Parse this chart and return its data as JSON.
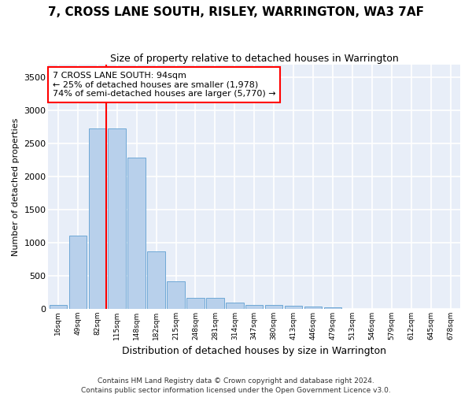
{
  "title1": "7, CROSS LANE SOUTH, RISLEY, WARRINGTON, WA3 7AF",
  "title2": "Size of property relative to detached houses in Warrington",
  "xlabel": "Distribution of detached houses by size in Warrington",
  "ylabel": "Number of detached properties",
  "footnote1": "Contains HM Land Registry data © Crown copyright and database right 2024.",
  "footnote2": "Contains public sector information licensed under the Open Government Licence v3.0.",
  "annotation_line1": "7 CROSS LANE SOUTH: 94sqm",
  "annotation_line2": "← 25% of detached houses are smaller (1,978)",
  "annotation_line3": "74% of semi-detached houses are larger (5,770) →",
  "bar_labels": [
    "16sqm",
    "49sqm",
    "82sqm",
    "115sqm",
    "148sqm",
    "182sqm",
    "215sqm",
    "248sqm",
    "281sqm",
    "314sqm",
    "347sqm",
    "380sqm",
    "413sqm",
    "446sqm",
    "479sqm",
    "513sqm",
    "546sqm",
    "579sqm",
    "612sqm",
    "645sqm",
    "678sqm"
  ],
  "bar_values": [
    55,
    1105,
    2730,
    2730,
    2290,
    870,
    420,
    170,
    170,
    90,
    60,
    55,
    45,
    30,
    20,
    5,
    5,
    0,
    0,
    0,
    0
  ],
  "bar_color": "#b8d0eb",
  "bar_edge_color": "#6fa8d6",
  "vline_x": 2.45,
  "vline_color": "red",
  "ylim": [
    0,
    3700
  ],
  "yticks": [
    0,
    500,
    1000,
    1500,
    2000,
    2500,
    3000,
    3500
  ],
  "background_color": "#e8eef8",
  "grid_color": "#ffffff",
  "annotation_box_edge": "red",
  "title1_fontsize": 11,
  "title2_fontsize": 9
}
